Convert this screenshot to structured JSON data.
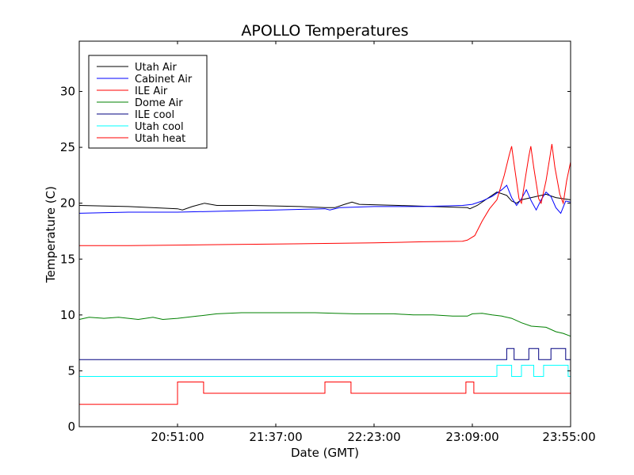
{
  "chart_data": {
    "type": "line",
    "title": "APOLLO Temperatures",
    "xlabel": "Date (GMT)",
    "ylabel": "Temperature (C)",
    "xlim": [
      0,
      100
    ],
    "ylim": [
      0,
      34.5
    ],
    "x_ticks": [
      {
        "pos": 20,
        "label": "20:51:00"
      },
      {
        "pos": 40,
        "label": "21:37:00"
      },
      {
        "pos": 60,
        "label": "22:23:00"
      },
      {
        "pos": 80,
        "label": "23:09:00"
      },
      {
        "pos": 100,
        "label": "23:55:00"
      }
    ],
    "y_ticks": [
      0,
      5,
      10,
      15,
      20,
      25,
      30
    ],
    "grid": false,
    "legend_position": "top-left",
    "series": [
      {
        "name": "Utah Air",
        "color": "#000000",
        "step": false,
        "points": [
          [
            0,
            19.8
          ],
          [
            10,
            19.7
          ],
          [
            20,
            19.5
          ],
          [
            21,
            19.4
          ],
          [
            23,
            19.7
          ],
          [
            25.5,
            20.0
          ],
          [
            28,
            19.8
          ],
          [
            35,
            19.8
          ],
          [
            45,
            19.7
          ],
          [
            50,
            19.6
          ],
          [
            52,
            19.6
          ],
          [
            54,
            19.9
          ],
          [
            55.5,
            20.1
          ],
          [
            57,
            19.9
          ],
          [
            65,
            19.8
          ],
          [
            72,
            19.7
          ],
          [
            79,
            19.6
          ],
          [
            79.5,
            19.5
          ],
          [
            81,
            19.8
          ],
          [
            83,
            20.4
          ],
          [
            85,
            21.0
          ],
          [
            87,
            20.7
          ],
          [
            88,
            20.2
          ],
          [
            89,
            20.0
          ],
          [
            90,
            20.3
          ],
          [
            92,
            20.5
          ],
          [
            95,
            20.8
          ],
          [
            97,
            20.5
          ],
          [
            100,
            20.3
          ]
        ]
      },
      {
        "name": "Cabinet Air",
        "color": "#0000ff",
        "step": false,
        "points": [
          [
            0,
            19.1
          ],
          [
            10,
            19.2
          ],
          [
            20,
            19.2
          ],
          [
            30,
            19.3
          ],
          [
            40,
            19.4
          ],
          [
            50,
            19.5
          ],
          [
            51,
            19.4
          ],
          [
            53,
            19.6
          ],
          [
            60,
            19.7
          ],
          [
            70,
            19.7
          ],
          [
            78,
            19.8
          ],
          [
            80,
            19.9
          ],
          [
            82,
            20.2
          ],
          [
            84,
            20.6
          ],
          [
            86,
            21.2
          ],
          [
            87,
            21.6
          ],
          [
            88,
            20.5
          ],
          [
            89,
            19.8
          ],
          [
            90,
            20.4
          ],
          [
            91,
            21.2
          ],
          [
            92,
            20.2
          ],
          [
            93,
            19.4
          ],
          [
            94,
            20.3
          ],
          [
            95,
            21.0
          ],
          [
            96,
            20.6
          ],
          [
            97,
            19.6
          ],
          [
            98,
            19.1
          ],
          [
            99,
            20.2
          ],
          [
            100,
            20.1
          ]
        ]
      },
      {
        "name": "ILE Air",
        "color": "#ff0000",
        "step": false,
        "points": [
          [
            0,
            16.2
          ],
          [
            10,
            16.2
          ],
          [
            20,
            16.25
          ],
          [
            30,
            16.3
          ],
          [
            40,
            16.35
          ],
          [
            50,
            16.4
          ],
          [
            60,
            16.45
          ],
          [
            70,
            16.55
          ],
          [
            78,
            16.6
          ],
          [
            79,
            16.7
          ],
          [
            80.5,
            17.1
          ],
          [
            82,
            18.4
          ],
          [
            83.5,
            19.5
          ],
          [
            85,
            20.3
          ],
          [
            86.5,
            22.5
          ],
          [
            87.5,
            24.3
          ],
          [
            88,
            25.1
          ],
          [
            88.5,
            23.5
          ],
          [
            89.5,
            20.4
          ],
          [
            90,
            20.0
          ],
          [
            90.8,
            22.3
          ],
          [
            91.5,
            24.2
          ],
          [
            91.9,
            25.1
          ],
          [
            92.5,
            23.2
          ],
          [
            93.5,
            20.4
          ],
          [
            94,
            20.0
          ],
          [
            95,
            22.0
          ],
          [
            95.8,
            24.2
          ],
          [
            96.2,
            25.3
          ],
          [
            96.8,
            23.2
          ],
          [
            97.8,
            20.8
          ],
          [
            98.5,
            20.0
          ],
          [
            99.2,
            22.0
          ],
          [
            100,
            23.7
          ]
        ]
      },
      {
        "name": "Dome Air",
        "color": "#008000",
        "step": false,
        "points": [
          [
            0,
            9.6
          ],
          [
            2,
            9.8
          ],
          [
            5,
            9.7
          ],
          [
            8,
            9.8
          ],
          [
            12,
            9.6
          ],
          [
            15,
            9.8
          ],
          [
            17,
            9.6
          ],
          [
            20,
            9.7
          ],
          [
            24,
            9.9
          ],
          [
            28,
            10.1
          ],
          [
            33,
            10.2
          ],
          [
            38,
            10.2
          ],
          [
            43,
            10.2
          ],
          [
            48,
            10.2
          ],
          [
            52,
            10.15
          ],
          [
            56,
            10.1
          ],
          [
            60,
            10.1
          ],
          [
            64,
            10.1
          ],
          [
            68,
            10.0
          ],
          [
            72,
            10.0
          ],
          [
            76,
            9.9
          ],
          [
            79,
            9.9
          ],
          [
            80,
            10.1
          ],
          [
            82,
            10.15
          ],
          [
            84,
            10.0
          ],
          [
            86,
            9.9
          ],
          [
            88,
            9.7
          ],
          [
            90,
            9.3
          ],
          [
            92,
            9.0
          ],
          [
            95,
            8.9
          ],
          [
            97,
            8.5
          ],
          [
            98.5,
            8.35
          ],
          [
            100,
            8.1
          ]
        ]
      },
      {
        "name": "ILE cool",
        "color": "#000080",
        "step": true,
        "points": [
          [
            0,
            6.0
          ],
          [
            87,
            6.0
          ],
          [
            87,
            7.0
          ],
          [
            88.5,
            7.0
          ],
          [
            88.5,
            6.0
          ],
          [
            91.5,
            6.0
          ],
          [
            91.5,
            7.0
          ],
          [
            93.5,
            7.0
          ],
          [
            93.5,
            6.0
          ],
          [
            96,
            6.0
          ],
          [
            96,
            7.0
          ],
          [
            99,
            7.0
          ],
          [
            99,
            6.0
          ],
          [
            100,
            6.0
          ]
        ]
      },
      {
        "name": "Utah cool",
        "color": "#00ffff",
        "step": true,
        "points": [
          [
            0,
            4.5
          ],
          [
            85,
            4.5
          ],
          [
            85,
            5.5
          ],
          [
            88,
            5.5
          ],
          [
            88,
            4.5
          ],
          [
            90,
            4.5
          ],
          [
            90,
            5.5
          ],
          [
            92.5,
            5.5
          ],
          [
            92.5,
            4.5
          ],
          [
            94.5,
            4.5
          ],
          [
            94.5,
            5.5
          ],
          [
            99.5,
            5.5
          ],
          [
            99.5,
            4.5
          ],
          [
            100,
            4.5
          ]
        ]
      },
      {
        "name": "Utah heat",
        "color": "#ff0000",
        "step": true,
        "points": [
          [
            0,
            2.0
          ],
          [
            20,
            2.0
          ],
          [
            20,
            4.0
          ],
          [
            25.3,
            4.0
          ],
          [
            25.3,
            3.0
          ],
          [
            50,
            3.0
          ],
          [
            50,
            4.0
          ],
          [
            55.3,
            4.0
          ],
          [
            55.3,
            3.0
          ],
          [
            78.7,
            3.0
          ],
          [
            78.7,
            4.0
          ],
          [
            80.3,
            4.0
          ],
          [
            80.3,
            3.0
          ],
          [
            100,
            3.0
          ]
        ]
      }
    ]
  }
}
